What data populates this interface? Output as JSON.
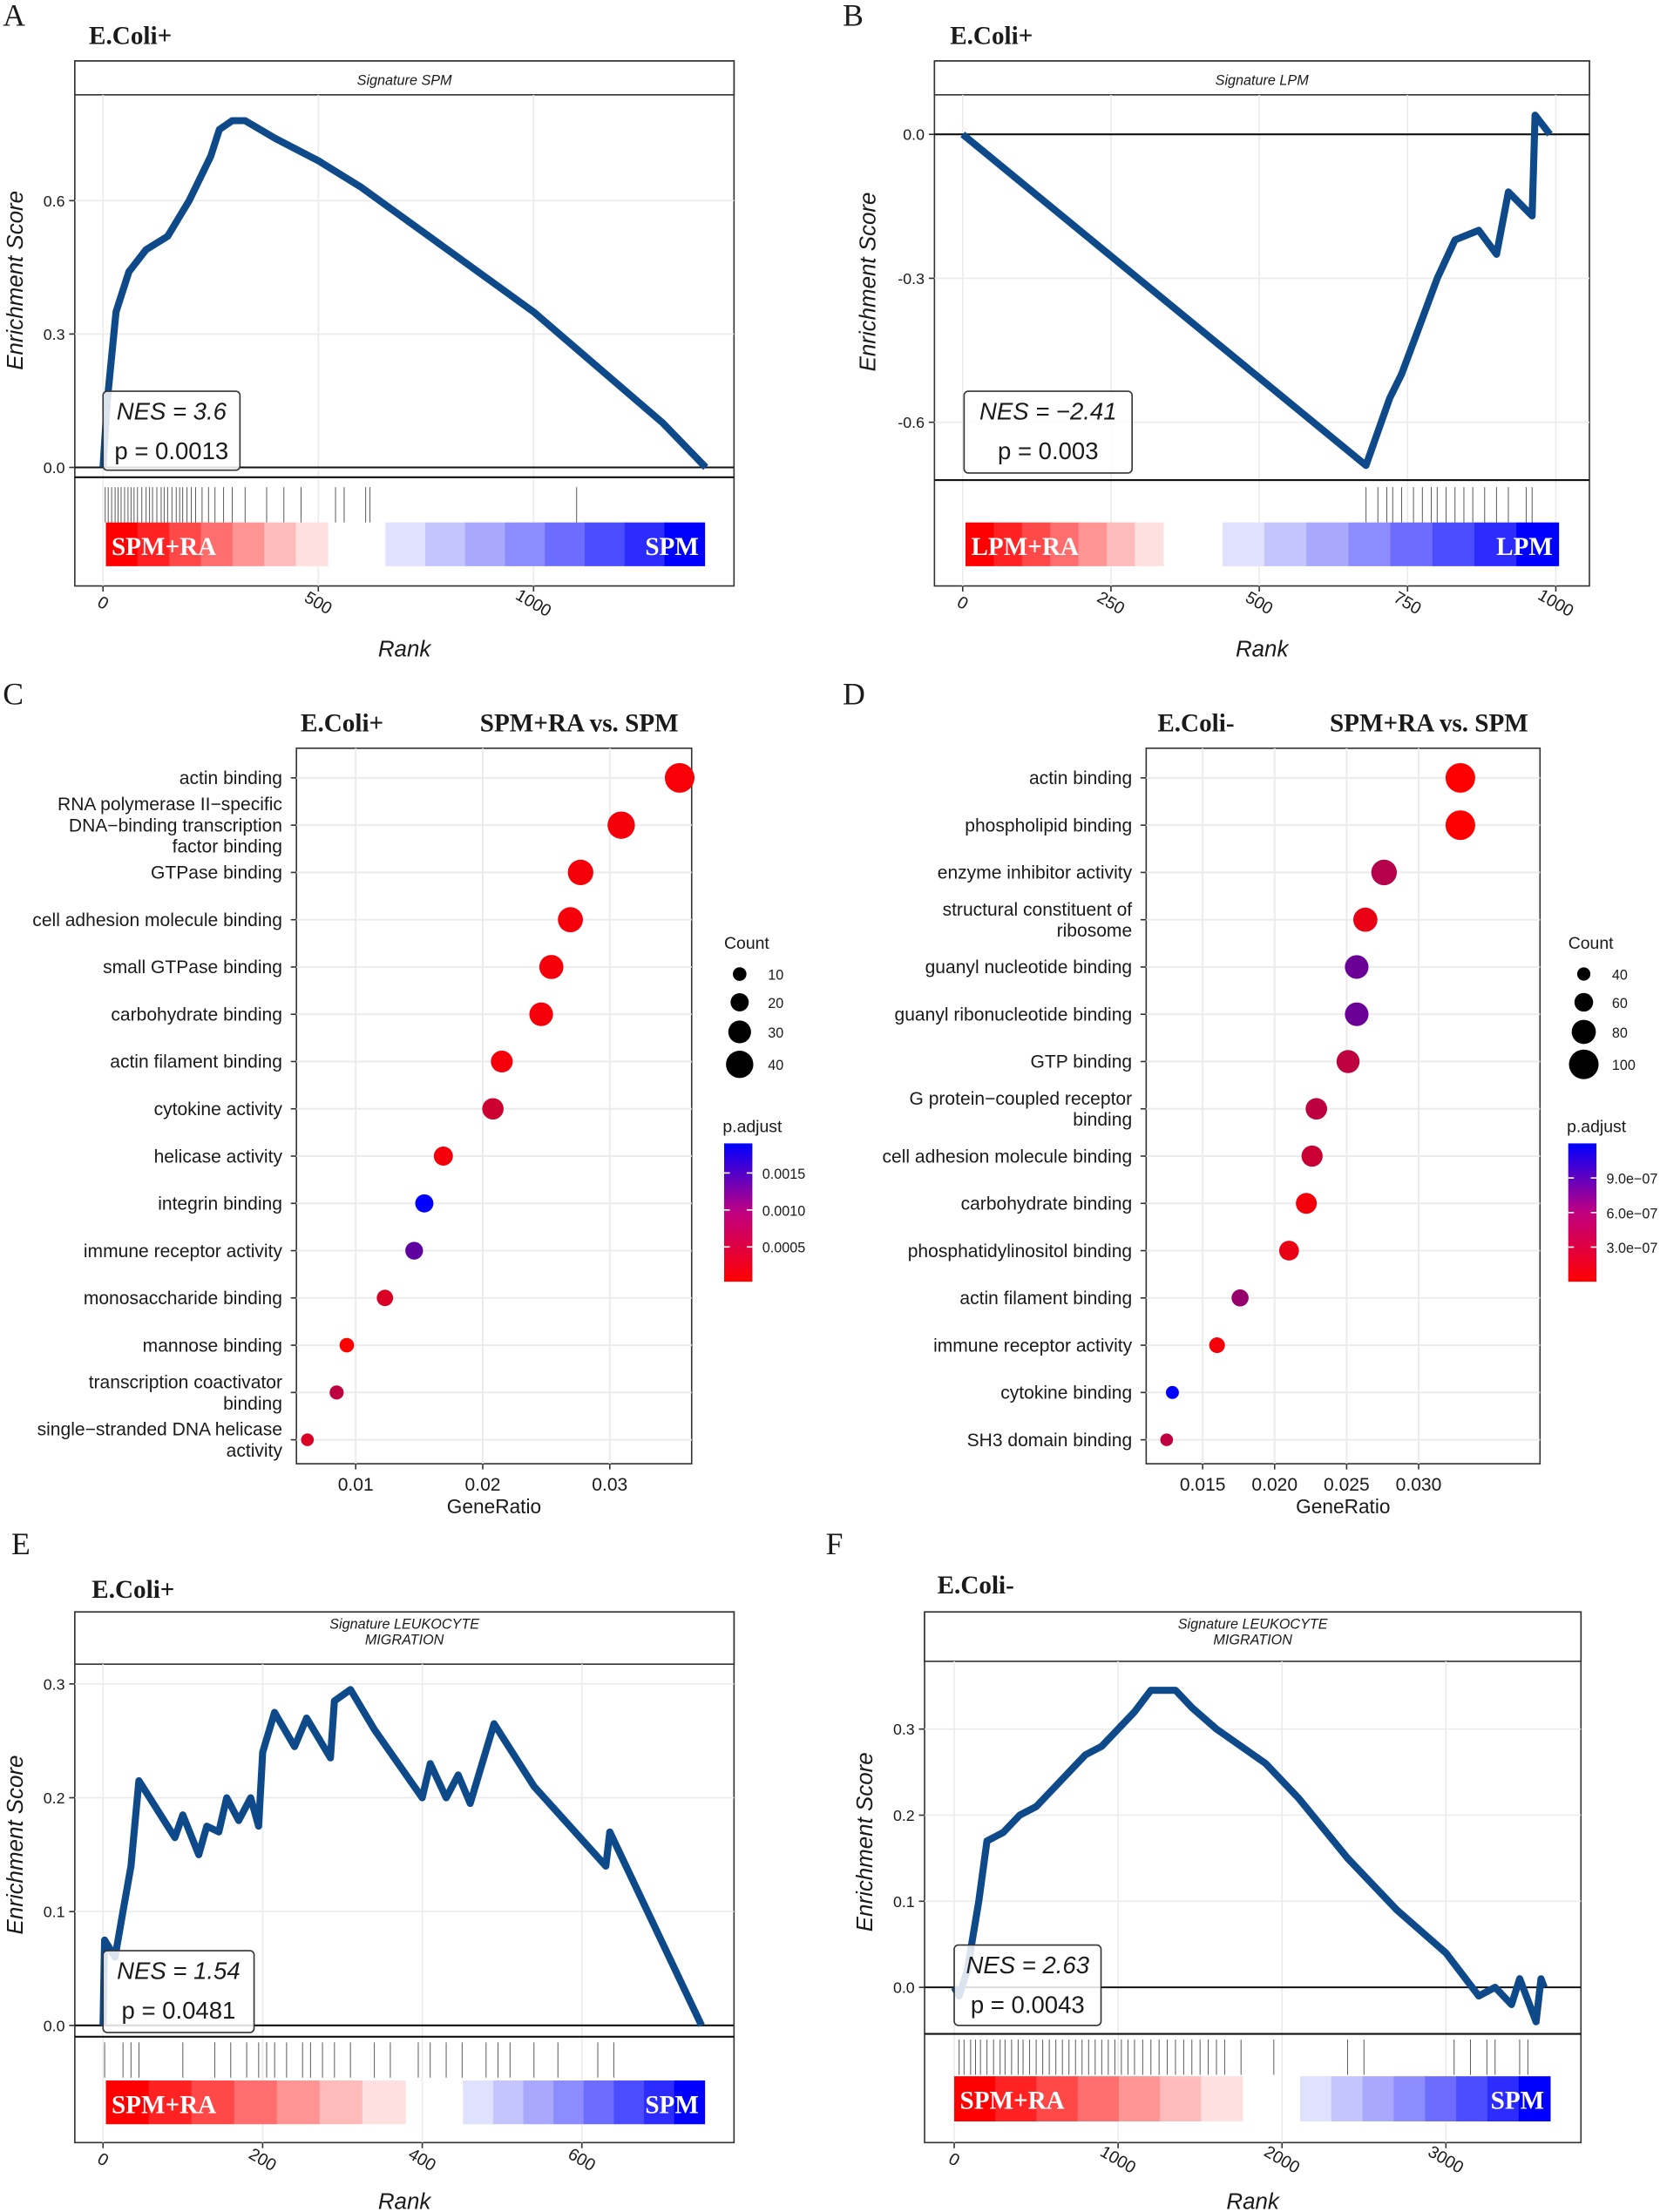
{
  "chart_data": [
    {
      "type": "line",
      "panel": "A",
      "title": "E.Coli+",
      "subtitle": "Signature SPM",
      "xlabel": "Rank",
      "ylabel": "Enrichment Score",
      "xticks": [
        "0",
        "500",
        "1000"
      ],
      "yticks": [
        "0.0",
        "0.3",
        "0.6"
      ],
      "xlim": [
        0,
        1400
      ],
      "ylim": [
        -0.02,
        0.84
      ],
      "nes_text": "NES = 3.6",
      "p_text": "p = 0.0013",
      "bar_left_label": "SPM+RA",
      "bar_right_label": "SPM",
      "points": [
        [
          0,
          0
        ],
        [
          10,
          0.15
        ],
        [
          30,
          0.35
        ],
        [
          60,
          0.44
        ],
        [
          100,
          0.49
        ],
        [
          150,
          0.52
        ],
        [
          200,
          0.6
        ],
        [
          250,
          0.7
        ],
        [
          270,
          0.76
        ],
        [
          300,
          0.78
        ],
        [
          330,
          0.78
        ],
        [
          400,
          0.74
        ],
        [
          500,
          0.69
        ],
        [
          600,
          0.63
        ],
        [
          1000,
          0.35
        ],
        [
          1300,
          0.1
        ],
        [
          1400,
          0
        ]
      ],
      "hits": [
        5,
        12,
        20,
        28,
        35,
        42,
        50,
        58,
        65,
        72,
        80,
        90,
        100,
        108,
        115,
        125,
        135,
        142,
        150,
        160,
        170,
        178,
        185,
        195,
        205,
        215,
        230,
        245,
        260,
        280,
        300,
        330,
        380,
        420,
        460,
        540,
        560,
        610,
        620,
        1100
      ]
    },
    {
      "type": "line",
      "panel": "B",
      "title": "E.Coli+",
      "subtitle": "Signature LPM",
      "xlabel": "Rank",
      "ylabel": "Enrichment Score",
      "xticks": [
        "0",
        "250",
        "500",
        "750",
        "1000"
      ],
      "yticks": [
        "0.0",
        "-0.3",
        "-0.6"
      ],
      "xlim": [
        0,
        990
      ],
      "ylim": [
        -0.72,
        0.08
      ],
      "nes_text": "NES = −2.41",
      "p_text": "p = 0.003",
      "bar_left_label": "LPM+RA",
      "bar_right_label": "LPM",
      "points": [
        [
          0,
          0
        ],
        [
          680,
          -0.69
        ],
        [
          700,
          -0.62
        ],
        [
          720,
          -0.55
        ],
        [
          740,
          -0.5
        ],
        [
          770,
          -0.4
        ],
        [
          800,
          -0.3
        ],
        [
          830,
          -0.22
        ],
        [
          870,
          -0.2
        ],
        [
          900,
          -0.25
        ],
        [
          920,
          -0.12
        ],
        [
          960,
          -0.17
        ],
        [
          965,
          0.04
        ],
        [
          990,
          0
        ]
      ],
      "hits": [
        680,
        700,
        715,
        725,
        740,
        760,
        775,
        790,
        800,
        815,
        830,
        845,
        860,
        880,
        900,
        920,
        950,
        960
      ]
    },
    {
      "type": "scatter",
      "panel": "C",
      "title": "E.Coli+",
      "subtitle": "SPM+RA vs. SPM",
      "xlabel": "GeneRatio",
      "xticks": [
        "0.01",
        "0.02",
        "0.03"
      ],
      "size_legend_title": "Count",
      "size_legend": [
        "10",
        "20",
        "30",
        "40"
      ],
      "color_legend_title": "p.adjust",
      "color_legend": [
        "0.0015",
        "0.0010",
        "0.0005"
      ],
      "color_domain": [
        3e-05,
        0.0019
      ],
      "size_domain": [
        8,
        45
      ],
      "terms": [
        {
          "label": [
            "actin binding"
          ],
          "gene_ratio": 0.0355,
          "count": 45,
          "p_adjust": 8e-05
        },
        {
          "label": [
            "RNA polymerase II−specific",
            "DNA−binding transcription",
            "factor binding"
          ],
          "gene_ratio": 0.0309,
          "count": 40,
          "p_adjust": 0.0001
        },
        {
          "label": [
            "GTPase binding"
          ],
          "gene_ratio": 0.0277,
          "count": 36,
          "p_adjust": 0.0001
        },
        {
          "label": [
            "cell adhesion molecule binding"
          ],
          "gene_ratio": 0.0269,
          "count": 35,
          "p_adjust": 0.0001
        },
        {
          "label": [
            "small GTPase binding"
          ],
          "gene_ratio": 0.0254,
          "count": 33,
          "p_adjust": 0.0001
        },
        {
          "label": [
            "carbohydrate binding"
          ],
          "gene_ratio": 0.0246,
          "count": 32,
          "p_adjust": 0.0001
        },
        {
          "label": [
            "actin filament binding"
          ],
          "gene_ratio": 0.0215,
          "count": 28,
          "p_adjust": 0.0001
        },
        {
          "label": [
            "cytokine activity"
          ],
          "gene_ratio": 0.0208,
          "count": 27,
          "p_adjust": 0.0004
        },
        {
          "label": [
            "helicase activity"
          ],
          "gene_ratio": 0.0169,
          "count": 22,
          "p_adjust": 0.0001
        },
        {
          "label": [
            "integrin binding"
          ],
          "gene_ratio": 0.0154,
          "count": 20,
          "p_adjust": 0.0019
        },
        {
          "label": [
            "immune receptor activity"
          ],
          "gene_ratio": 0.0146,
          "count": 19,
          "p_adjust": 0.0012
        },
        {
          "label": [
            "monosaccharide binding"
          ],
          "gene_ratio": 0.0123,
          "count": 16,
          "p_adjust": 0.0003
        },
        {
          "label": [
            "mannose binding"
          ],
          "gene_ratio": 0.0093,
          "count": 12,
          "p_adjust": 3e-05
        },
        {
          "label": [
            "transcription coactivator",
            "binding"
          ],
          "gene_ratio": 0.0085,
          "count": 11,
          "p_adjust": 0.0005
        },
        {
          "label": [
            "single−stranded DNA helicase",
            "activity"
          ],
          "gene_ratio": 0.0062,
          "count": 8,
          "p_adjust": 0.0003
        }
      ]
    },
    {
      "type": "scatter",
      "panel": "D",
      "title": "E.Coli-",
      "subtitle": "SPM+RA vs. SPM",
      "xlabel": "GeneRatio",
      "xticks": [
        "0.015",
        "0.020",
        "0.025",
        "0.030"
      ],
      "size_legend_title": "Count",
      "size_legend": [
        "40",
        "60",
        "80",
        "100"
      ],
      "color_legend_title": "p.adjust",
      "color_legend": [
        "9.0e−07",
        "6.0e−07",
        "3.0e−07"
      ],
      "color_domain": [
        0,
        1.2e-06
      ],
      "size_domain": [
        38,
        100
      ],
      "terms": [
        {
          "label": [
            "actin binding"
          ],
          "gene_ratio": 0.0329,
          "count": 100,
          "p_adjust": 0.0
        },
        {
          "label": [
            "phospholipid binding"
          ],
          "gene_ratio": 0.0329,
          "count": 100,
          "p_adjust": 0.0
        },
        {
          "label": [
            "enzyme inhibitor activity"
          ],
          "gene_ratio": 0.0276,
          "count": 85,
          "p_adjust": 3.5e-07
        },
        {
          "label": [
            "structural constituent of",
            "ribosome"
          ],
          "gene_ratio": 0.0263,
          "count": 80,
          "p_adjust": 1e-07
        },
        {
          "label": [
            "guanyl nucleotide binding"
          ],
          "gene_ratio": 0.0257,
          "count": 78,
          "p_adjust": 7e-07
        },
        {
          "label": [
            "guanyl ribonucleotide binding"
          ],
          "gene_ratio": 0.0257,
          "count": 78,
          "p_adjust": 7e-07
        },
        {
          "label": [
            "GTP binding"
          ],
          "gene_ratio": 0.0251,
          "count": 76,
          "p_adjust": 3e-07
        },
        {
          "label": [
            "G protein−coupled receptor",
            "binding"
          ],
          "gene_ratio": 0.0229,
          "count": 70,
          "p_adjust": 3e-07
        },
        {
          "label": [
            "cell adhesion molecule binding"
          ],
          "gene_ratio": 0.0226,
          "count": 69,
          "p_adjust": 2.5e-07
        },
        {
          "label": [
            "carbohydrate binding"
          ],
          "gene_ratio": 0.0222,
          "count": 68,
          "p_adjust": 5e-08
        },
        {
          "label": [
            "phosphatidylinositol binding"
          ],
          "gene_ratio": 0.021,
          "count": 64,
          "p_adjust": 1e-07
        },
        {
          "label": [
            "actin filament binding"
          ],
          "gene_ratio": 0.0176,
          "count": 54,
          "p_adjust": 5e-07
        },
        {
          "label": [
            "immune receptor activity"
          ],
          "gene_ratio": 0.016,
          "count": 49,
          "p_adjust": 5e-08
        },
        {
          "label": [
            "cytokine binding"
          ],
          "gene_ratio": 0.0129,
          "count": 39,
          "p_adjust": 1.2e-06
        },
        {
          "label": [
            "SH3 domain binding"
          ],
          "gene_ratio": 0.0125,
          "count": 38,
          "p_adjust": 3e-07
        }
      ]
    },
    {
      "type": "line",
      "panel": "E",
      "title": "E.Coli+",
      "subtitle": "Signature LEUKOCYTE\nMIGRATION",
      "subtitle_lines": [
        "Signature LEUKOCYTE",
        "MIGRATION"
      ],
      "xlabel": "Rank",
      "ylabel": "Enrichment Score",
      "xticks": [
        "0",
        "200",
        "400",
        "600"
      ],
      "yticks": [
        "0.0",
        "0.1",
        "0.2",
        "0.3"
      ],
      "xlim": [
        0,
        750
      ],
      "ylim": [
        -0.01,
        0.316
      ],
      "nes_text": "NES = 1.54",
      "p_text": "p = 0.0481",
      "bar_left_label": "SPM+RA",
      "bar_right_label": "SPM",
      "points": [
        [
          0,
          0
        ],
        [
          2,
          0.075
        ],
        [
          15,
          0.06
        ],
        [
          25,
          0.1
        ],
        [
          35,
          0.14
        ],
        [
          45,
          0.215
        ],
        [
          90,
          0.165
        ],
        [
          100,
          0.185
        ],
        [
          120,
          0.15
        ],
        [
          130,
          0.175
        ],
        [
          145,
          0.17
        ],
        [
          155,
          0.2
        ],
        [
          170,
          0.18
        ],
        [
          185,
          0.2
        ],
        [
          195,
          0.175
        ],
        [
          200,
          0.24
        ],
        [
          215,
          0.275
        ],
        [
          240,
          0.245
        ],
        [
          255,
          0.27
        ],
        [
          285,
          0.235
        ],
        [
          290,
          0.285
        ],
        [
          310,
          0.295
        ],
        [
          340,
          0.26
        ],
        [
          400,
          0.2
        ],
        [
          410,
          0.23
        ],
        [
          430,
          0.2
        ],
        [
          445,
          0.22
        ],
        [
          460,
          0.195
        ],
        [
          490,
          0.265
        ],
        [
          540,
          0.21
        ],
        [
          630,
          0.14
        ],
        [
          635,
          0.17
        ],
        [
          750,
          0
        ]
      ],
      "hits": [
        2,
        25,
        35,
        45,
        100,
        140,
        160,
        180,
        195,
        205,
        215,
        230,
        250,
        260,
        275,
        290,
        310,
        340,
        360,
        395,
        410,
        430,
        450,
        480,
        495,
        510,
        540,
        570,
        620,
        640
      ]
    },
    {
      "type": "line",
      "panel": "F",
      "title": "E.Coli-",
      "subtitle_lines": [
        "Signature LEUKOCYTE",
        "MIGRATION"
      ],
      "xlabel": "Rank",
      "ylabel": "Enrichment Score",
      "xticks": [
        "0",
        "1000",
        "2000",
        "3000"
      ],
      "yticks": [
        "0.0",
        "0.1",
        "0.2",
        "0.3"
      ],
      "xlim": [
        0,
        3600
      ],
      "ylim": [
        -0.054,
        0.379
      ],
      "nes_text": "NES = 2.63",
      "p_text": "p = 0.0043",
      "bar_left_label": "SPM+RA",
      "bar_right_label": "SPM",
      "points": [
        [
          0,
          0
        ],
        [
          30,
          -0.01
        ],
        [
          80,
          0.02
        ],
        [
          150,
          0.1
        ],
        [
          200,
          0.17
        ],
        [
          300,
          0.18
        ],
        [
          400,
          0.2
        ],
        [
          500,
          0.21
        ],
        [
          600,
          0.23
        ],
        [
          700,
          0.25
        ],
        [
          800,
          0.27
        ],
        [
          900,
          0.28
        ],
        [
          1000,
          0.3
        ],
        [
          1100,
          0.32
        ],
        [
          1200,
          0.345
        ],
        [
          1350,
          0.345
        ],
        [
          1450,
          0.325
        ],
        [
          1600,
          0.3
        ],
        [
          1900,
          0.26
        ],
        [
          2100,
          0.22
        ],
        [
          2400,
          0.15
        ],
        [
          2700,
          0.09
        ],
        [
          3000,
          0.04
        ],
        [
          3200,
          -0.01
        ],
        [
          3300,
          0.0
        ],
        [
          3400,
          -0.02
        ],
        [
          3450,
          0.01
        ],
        [
          3550,
          -0.04
        ],
        [
          3580,
          0.01
        ],
        [
          3600,
          0
        ]
      ],
      "hits": [
        30,
        60,
        100,
        130,
        160,
        200,
        240,
        280,
        310,
        350,
        390,
        420,
        460,
        500,
        540,
        580,
        620,
        660,
        700,
        740,
        780,
        820,
        860,
        900,
        940,
        980,
        1020,
        1060,
        1100,
        1150,
        1200,
        1250,
        1300,
        1350,
        1400,
        1450,
        1500,
        1550,
        1600,
        1650,
        1750,
        1950,
        2400,
        2500,
        3050,
        3150,
        3250,
        3300,
        3450,
        3500
      ]
    }
  ]
}
